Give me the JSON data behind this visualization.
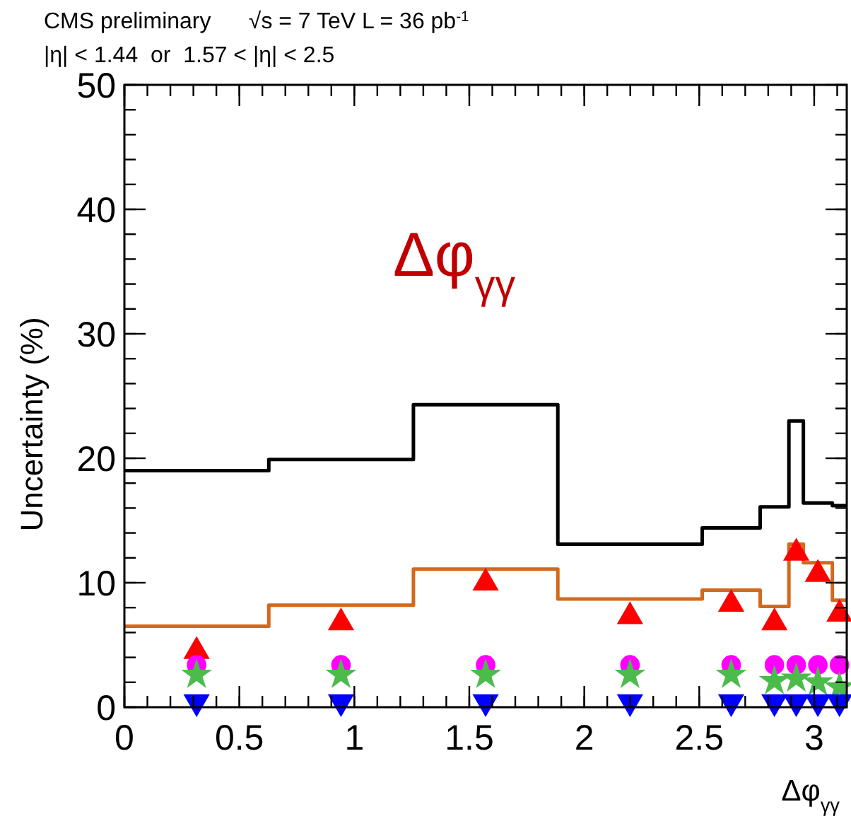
{
  "chart_data": {
    "type": "step",
    "title": "CMS preliminary      √s = 7 TeV L = 36 pb$^{-1}$",
    "subtitle": "|η| < 1.44  or  1.57 < |η| < 2.5",
    "xlabel": "Δφ$_{γγ}$",
    "ylabel": "Uncertainty (%)",
    "annotations": [
      "Δφ$_{γγ}$"
    ],
    "xlim": [
      0,
      3.1416
    ],
    "ylim": [
      0,
      50
    ],
    "xticks": [
      0,
      0.5,
      1,
      1.5,
      2,
      2.5,
      3
    ],
    "yticks": [
      0,
      10,
      20,
      30,
      40,
      50
    ],
    "grid": false,
    "series": [
      {
        "color": "#000000",
        "x": [
          0,
          0.628,
          1.257,
          1.885,
          2.513,
          2.765,
          2.89,
          2.953,
          3.079,
          3.1416
        ],
        "values": [
          19.0,
          19.9,
          24.3,
          13.1,
          14.4,
          16.1,
          23.0,
          16.4,
          16.2,
          16.2
        ]
      },
      {
        "color": "#d2691e",
        "x": [
          0,
          0.628,
          1.257,
          1.885,
          2.513,
          2.765,
          2.89,
          2.953,
          3.079,
          3.1416
        ],
        "values": [
          6.5,
          8.2,
          11.1,
          8.7,
          9.4,
          8.1,
          13.1,
          11.6,
          8.6,
          8.6
        ]
      },
      {
        "type": "scatter",
        "marker": "triangle",
        "color": "#ff0000",
        "x": [
          0.314,
          0.942,
          1.571,
          2.199,
          2.639,
          2.827,
          2.922,
          3.016,
          3.11
        ],
        "values": [
          4.6,
          6.9,
          10.1,
          7.4,
          8.4,
          6.9,
          12.5,
          10.8,
          7.6
        ]
      },
      {
        "type": "scatter",
        "marker": "circle",
        "color": "#ff00ff",
        "x": [
          0.314,
          0.942,
          1.571,
          2.199,
          2.639,
          2.827,
          2.922,
          3.016,
          3.11
        ],
        "values": [
          3.4,
          3.4,
          3.4,
          3.4,
          3.4,
          3.4,
          3.4,
          3.4,
          3.4
        ]
      },
      {
        "type": "scatter",
        "marker": "star",
        "color": "#4cbb4c",
        "x": [
          0.314,
          0.942,
          1.571,
          2.199,
          2.639,
          2.827,
          2.922,
          3.016,
          3.11
        ],
        "values": [
          2.6,
          2.6,
          2.6,
          2.6,
          2.6,
          2.1,
          2.3,
          2.0,
          1.6
        ]
      },
      {
        "type": "scatter",
        "marker": "triangle-down",
        "color": "#0000ff",
        "x": [
          0.314,
          0.942,
          1.571,
          2.199,
          2.639,
          2.827,
          2.922,
          3.016,
          3.11
        ],
        "values": [
          0.2,
          0.2,
          0.2,
          0.2,
          0.2,
          0.2,
          0.2,
          0.2,
          0.2
        ]
      }
    ]
  }
}
